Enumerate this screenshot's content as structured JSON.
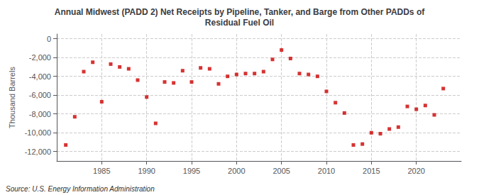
{
  "chart_data": {
    "type": "scatter",
    "title": "Annual Midwest (PADD 2) Net Receipts by Pipeline, Tanker, and Barge from Other PADDs of\nResidual Fuel Oil",
    "ylabel": "Thousand Barrels",
    "annotations": [
      "Source: U.S. Energy Information Administration"
    ],
    "color": "#cc0000",
    "marker": "square",
    "grid": true,
    "x": [
      1981,
      1982,
      1983,
      1984,
      1985,
      1986,
      1987,
      1988,
      1989,
      1990,
      1991,
      1992,
      1993,
      1994,
      1995,
      1996,
      1997,
      1998,
      1999,
      2000,
      2001,
      2002,
      2003,
      2004,
      2005,
      2006,
      2007,
      2008,
      2009,
      2010,
      2011,
      2012,
      2013,
      2014,
      2015,
      2016,
      2017,
      2018,
      2019,
      2020,
      2021,
      2022,
      2023
    ],
    "values": [
      -11300,
      -8300,
      -3500,
      -2500,
      -6700,
      -2700,
      -3000,
      -3200,
      -4400,
      -6200,
      -9000,
      -4600,
      -4700,
      -3400,
      -4600,
      -3100,
      -3200,
      -4800,
      -4000,
      -3800,
      -3700,
      -3700,
      -3500,
      -2200,
      -1200,
      -2100,
      -3700,
      -3800,
      -4000,
      -5600,
      -6800,
      -7900,
      -11300,
      -11200,
      -10000,
      -10100,
      -9600,
      -9400,
      -7200,
      -7500,
      -7100,
      -8100,
      -5300
    ],
    "xlim": [
      1980,
      2025
    ],
    "xticks": [
      1985,
      1990,
      1995,
      2000,
      2005,
      2010,
      2015,
      2020
    ],
    "ylim": [
      -13000,
      500
    ],
    "yticks": [
      0,
      {
        "value": -2000,
        "label": "-2,000"
      },
      {
        "value": -4000,
        "label": "-4,000"
      },
      {
        "value": -6000,
        "label": "-6,000"
      },
      {
        "value": -8000,
        "label": "-8,000"
      },
      {
        "value": -10000,
        "label": "-10,000"
      },
      {
        "value": -12000,
        "label": "-12,000"
      }
    ]
  }
}
